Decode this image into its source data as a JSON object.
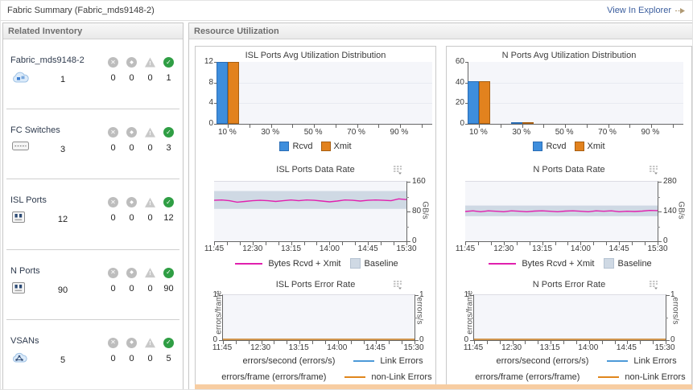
{
  "header": {
    "title": "Fabric Summary (Fabric_mds9148-2)",
    "view_in_explorer": "View In Explorer"
  },
  "inventory": {
    "title": "Related Inventory",
    "items": [
      {
        "label": "Fabric_mds9148-2",
        "icon": "fabric-icon",
        "count": "1",
        "fatal": "0",
        "critical": "0",
        "warning": "0",
        "normal": "1"
      },
      {
        "label": "FC Switches",
        "icon": "switch-icon",
        "count": "3",
        "fatal": "0",
        "critical": "0",
        "warning": "0",
        "normal": "3"
      },
      {
        "label": "ISL Ports",
        "icon": "port-icon",
        "count": "12",
        "fatal": "0",
        "critical": "0",
        "warning": "0",
        "normal": "12"
      },
      {
        "label": "N Ports",
        "icon": "port-icon",
        "count": "90",
        "fatal": "0",
        "critical": "0",
        "warning": "0",
        "normal": "90"
      },
      {
        "label": "VSANs",
        "icon": "vsan-icon",
        "count": "5",
        "fatal": "0",
        "critical": "0",
        "warning": "0",
        "normal": "5"
      }
    ]
  },
  "resource": {
    "title": "Resource Utilization"
  },
  "colors": {
    "accent_blue": "#3e8edd",
    "accent_orange": "#e2821e",
    "line_magenta": "#e120ae",
    "baseline_band": "#cfd9e4",
    "status_green": "#2f9e44",
    "status_gray": "#bdbdbd",
    "bottom_strip": "#f7cda2",
    "link_blue": "#3b5e9e"
  },
  "chart_data": [
    {
      "id": "isl-util-dist",
      "type": "bar",
      "title": "ISL Ports Avg Utilization Distribution",
      "xlabel_values": [
        10,
        30,
        50,
        70,
        90
      ],
      "xlabels": [
        "10 %",
        "30 %",
        "50 %",
        "70 %",
        "90 %"
      ],
      "ylim": [
        0,
        12
      ],
      "yticks": [
        0,
        4,
        8,
        12
      ],
      "grid": true,
      "legend_position": "bottom",
      "series": [
        {
          "name": "Rcvd",
          "color": "#3e8edd",
          "border": "#2a6db5",
          "points": [
            {
              "x": 10,
              "y": 12
            }
          ]
        },
        {
          "name": "Xmit",
          "color": "#e2821e",
          "border": "#a85f12",
          "points": [
            {
              "x": 10,
              "y": 12
            }
          ]
        }
      ]
    },
    {
      "id": "n-util-dist",
      "type": "bar",
      "title": "N Ports Avg Utilization Distribution",
      "xlabel_values": [
        10,
        30,
        50,
        70,
        90
      ],
      "xlabels": [
        "10 %",
        "30 %",
        "50 %",
        "70 %",
        "90 %"
      ],
      "ylim": [
        0,
        60
      ],
      "yticks": [
        0,
        20,
        40,
        60
      ],
      "grid": true,
      "legend_position": "bottom",
      "series": [
        {
          "name": "Rcvd",
          "color": "#3e8edd",
          "border": "#2a6db5",
          "points": [
            {
              "x": 10,
              "y": 41
            },
            {
              "x": 30,
              "y": 1
            }
          ]
        },
        {
          "name": "Xmit",
          "color": "#e2821e",
          "border": "#a85f12",
          "points": [
            {
              "x": 10,
              "y": 41
            },
            {
              "x": 30,
              "y": 1
            }
          ]
        }
      ]
    },
    {
      "id": "isl-data-rate",
      "type": "line",
      "title": "ISL Ports Data Rate",
      "ylabel": "GB/s",
      "ylim": [
        0,
        160
      ],
      "yticks": [
        0,
        80,
        160
      ],
      "xticks": [
        "11:45",
        "12:30",
        "13:15",
        "14:00",
        "14:45",
        "15:30"
      ],
      "baseline_range": [
        87,
        135
      ],
      "baseline_label": "Baseline",
      "legend_position": "bottom",
      "series": [
        {
          "name": "Bytes Rcvd + Xmit",
          "color": "#e120ae",
          "values": [
            110,
            111,
            109,
            105,
            107,
            109,
            110,
            109,
            107,
            109,
            111,
            109,
            111,
            110,
            108,
            106,
            108,
            111,
            110,
            108,
            110,
            111,
            110,
            109,
            114,
            112
          ]
        }
      ]
    },
    {
      "id": "n-data-rate",
      "type": "line",
      "title": "N Ports Data Rate",
      "ylabel": "GB/s",
      "ylim": [
        0,
        280
      ],
      "yticks": [
        0,
        140,
        280
      ],
      "xticks": [
        "11:45",
        "12:30",
        "13:15",
        "14:00",
        "14:45",
        "15:30"
      ],
      "baseline_range": [
        118,
        168
      ],
      "baseline_label": "Baseline",
      "legend_position": "bottom",
      "series": [
        {
          "name": "Bytes Rcvd + Xmit",
          "color": "#e120ae",
          "values": [
            140,
            143,
            139,
            143,
            141,
            139,
            143,
            141,
            139,
            142,
            143,
            141,
            139,
            142,
            143,
            141,
            139,
            143,
            141,
            143,
            139,
            141,
            140,
            142,
            145,
            144
          ]
        }
      ]
    },
    {
      "id": "isl-error-rate",
      "type": "line",
      "title": "ISL Ports Error Rate",
      "ylabel_left": "errors/frame",
      "ylabel_right": "errors/s",
      "ylim": [
        0,
        1
      ],
      "yticks": [
        0,
        1
      ],
      "xticks": [
        "11:45",
        "12:30",
        "13:15",
        "14:00",
        "14:45",
        "15:30"
      ],
      "legend_position": "bottom",
      "series": [
        {
          "name": "Link Errors",
          "color": "#4d9ad8",
          "values": [
            0,
            0,
            0,
            0,
            0,
            0,
            0,
            0,
            0,
            0,
            0,
            0
          ]
        },
        {
          "name": "non-Link Errors",
          "color": "#e0861c",
          "values": [
            0,
            0,
            0,
            0,
            0,
            0,
            0,
            0,
            0,
            0,
            0,
            0
          ]
        }
      ],
      "legend_rows": [
        {
          "label": "errors/second (errors/s)",
          "series_name": "Link Errors"
        },
        {
          "label": "errors/frame (errors/frame)",
          "series_name": "non-Link Errors"
        }
      ]
    },
    {
      "id": "n-error-rate",
      "type": "line",
      "title": "N Ports Error Rate",
      "ylabel_left": "errors/frame",
      "ylabel_right": "errors/s",
      "ylim": [
        0,
        1
      ],
      "yticks": [
        0,
        1
      ],
      "xticks": [
        "11:45",
        "12:30",
        "13:15",
        "14:00",
        "14:45",
        "15:30"
      ],
      "legend_position": "bottom",
      "series": [
        {
          "name": "Link Errors",
          "color": "#4d9ad8",
          "values": [
            0,
            0,
            0,
            0,
            0,
            0,
            0,
            0,
            0,
            0,
            0,
            0
          ]
        },
        {
          "name": "non-Link Errors",
          "color": "#e0861c",
          "values": [
            0,
            0,
            0,
            0,
            0,
            0,
            0,
            0,
            0,
            0,
            0,
            0
          ]
        }
      ],
      "legend_rows": [
        {
          "label": "errors/second (errors/s)",
          "series_name": "Link Errors"
        },
        {
          "label": "errors/frame (errors/frame)",
          "series_name": "non-Link Errors"
        }
      ]
    }
  ]
}
